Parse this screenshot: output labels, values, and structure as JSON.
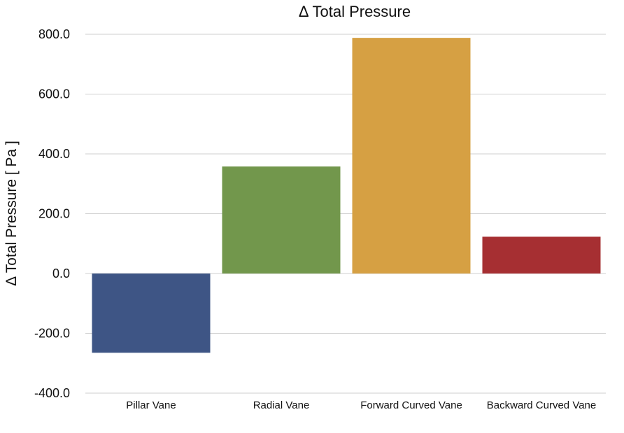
{
  "chart_data": {
    "type": "bar",
    "title": "Δ Total Pressure",
    "ylabel": "Δ Total Pressure [ Pa ]",
    "xlabel": "",
    "categories": [
      "Pillar Vane",
      "Radial Vane",
      "Forward Curved Vane",
      "Backward Curved Vane"
    ],
    "values": [
      -265,
      358,
      788,
      123
    ],
    "colors": [
      "#3e5585",
      "#72974c",
      "#d6a043",
      "#a62f32"
    ],
    "ylim": [
      -400,
      800
    ],
    "yticks": [
      "800.0",
      "600.0",
      "400.0",
      "200.0",
      "0.0",
      "-200.0",
      "-400.0"
    ],
    "ytick_values": [
      800,
      600,
      400,
      200,
      0,
      -200,
      -400
    ],
    "grid": true,
    "legend": "none"
  }
}
